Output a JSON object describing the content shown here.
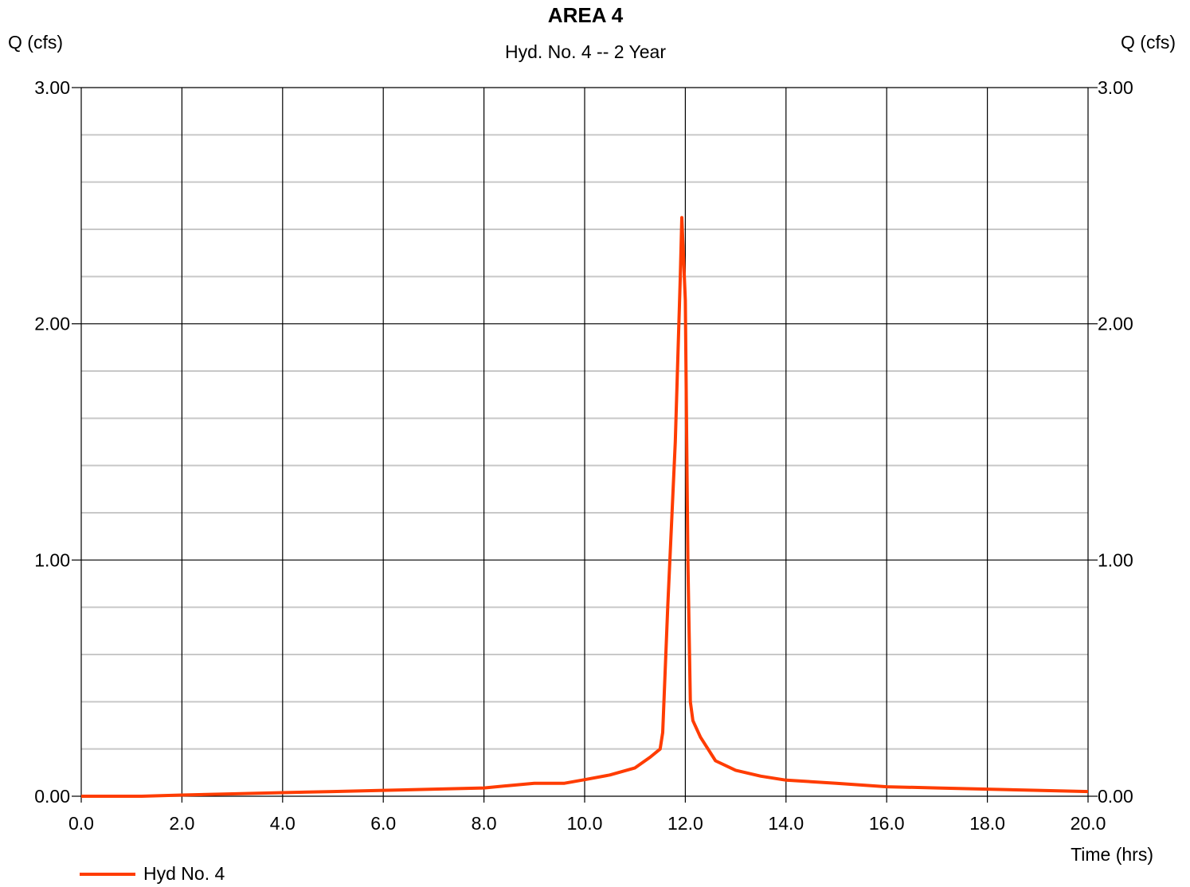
{
  "chart_data": {
    "type": "line",
    "title": "AREA 4",
    "subtitle": "Hyd. No. 4 -- 2 Year",
    "ylabel_left": "Q (cfs)",
    "ylabel_right": "Q (cfs)",
    "xlabel": "Time (hrs)",
    "xlim": [
      0,
      20
    ],
    "ylim": [
      0,
      3
    ],
    "x_ticks": [
      "0.0",
      "2.0",
      "4.0",
      "6.0",
      "8.0",
      "10.0",
      "12.0",
      "14.0",
      "16.0",
      "18.0",
      "20.0"
    ],
    "y_ticks": [
      "0.00",
      "1.00",
      "2.00",
      "3.00"
    ],
    "y_minor_step": 0.2,
    "grid": true,
    "legend_position": "bottom-left",
    "series": [
      {
        "name": "Hyd No. 4",
        "color": "#ff3c00",
        "x": [
          0.0,
          1.2,
          2.0,
          3.0,
          4.0,
          5.0,
          6.0,
          7.0,
          8.0,
          8.5,
          9.0,
          9.6,
          10.0,
          10.5,
          11.0,
          11.3,
          11.5,
          11.55,
          11.65,
          11.8,
          11.9,
          11.93,
          12.0,
          12.05,
          12.1,
          12.15,
          12.3,
          12.6,
          13.0,
          13.5,
          14.0,
          15.0,
          16.0,
          17.0,
          18.0,
          19.0,
          20.0
        ],
        "values": [
          0.0,
          0.0,
          0.005,
          0.01,
          0.015,
          0.02,
          0.025,
          0.03,
          0.035,
          0.045,
          0.055,
          0.055,
          0.07,
          0.09,
          0.12,
          0.165,
          0.2,
          0.27,
          0.8,
          1.5,
          2.2,
          2.45,
          2.1,
          1.0,
          0.4,
          0.32,
          0.25,
          0.15,
          0.11,
          0.085,
          0.068,
          0.055,
          0.04,
          0.035,
          0.03,
          0.025,
          0.02
        ]
      }
    ]
  }
}
